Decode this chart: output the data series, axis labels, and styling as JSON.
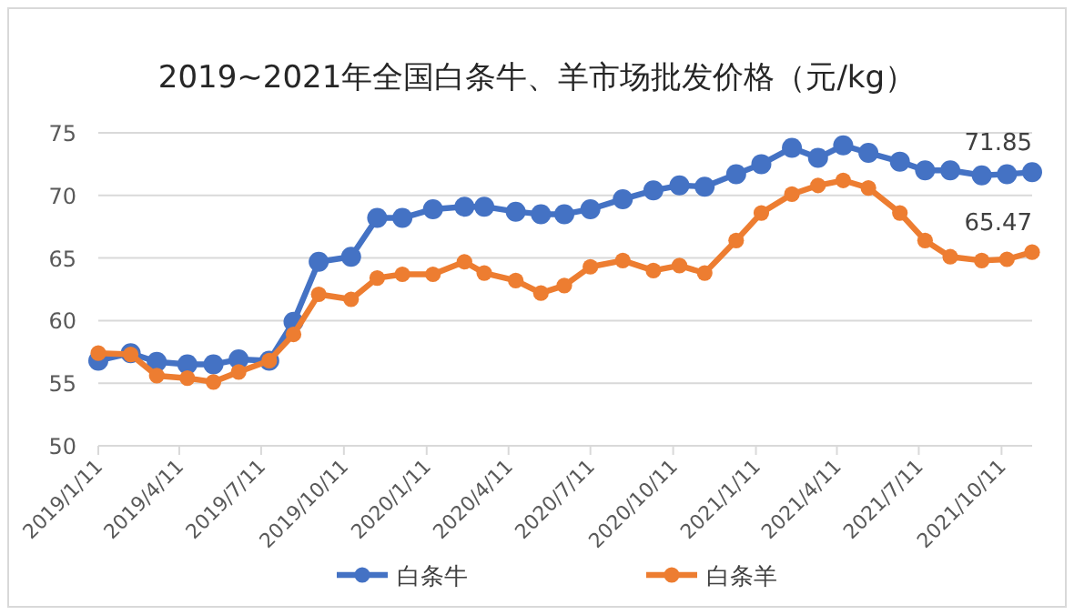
{
  "chart_data": {
    "type": "line",
    "title": "2019~2021年全国白条牛、羊市场批发价格（元/kg）",
    "x": [
      "2019-01-11",
      "2019-02-16",
      "2019-03-17",
      "2019-04-20",
      "2019-05-19",
      "2019-06-16",
      "2019-07-20",
      "2019-08-16",
      "2019-09-13",
      "2019-10-19",
      "2019-11-17",
      "2019-12-15",
      "2020-01-18",
      "2020-02-22",
      "2020-03-15",
      "2020-04-19",
      "2020-05-17",
      "2020-06-12",
      "2020-07-11",
      "2020-08-16",
      "2020-09-19",
      "2020-10-18",
      "2020-11-15",
      "2020-12-20",
      "2021-01-17",
      "2021-02-20",
      "2021-03-21",
      "2021-04-18",
      "2021-05-16",
      "2021-06-20",
      "2021-07-18",
      "2021-08-15",
      "2021-09-19",
      "2021-10-17",
      "2021-11-14"
    ],
    "series": [
      {
        "name": "白条牛",
        "color": "#4472c4",
        "values": [
          56.8,
          57.4,
          56.7,
          56.5,
          56.5,
          56.9,
          56.8,
          59.9,
          64.7,
          65.1,
          68.2,
          68.2,
          68.9,
          69.1,
          69.1,
          68.7,
          68.5,
          68.5,
          68.9,
          69.7,
          70.4,
          70.8,
          70.7,
          71.7,
          72.5,
          73.8,
          73.0,
          74.0,
          73.4,
          72.7,
          72.0,
          72.0,
          71.6,
          71.7,
          71.85
        ],
        "value_labels": [
          null,
          null,
          null,
          null,
          null,
          null,
          null,
          null,
          null,
          null,
          null,
          null,
          null,
          null,
          null,
          null,
          null,
          null,
          null,
          null,
          null,
          null,
          null,
          null,
          null,
          null,
          null,
          null,
          null,
          null,
          null,
          null,
          null,
          null,
          "71.85"
        ]
      },
      {
        "name": "白条羊",
        "color": "#ed7d31",
        "values": [
          57.4,
          57.3,
          55.6,
          55.4,
          55.1,
          55.9,
          56.8,
          58.9,
          62.1,
          61.7,
          63.4,
          63.7,
          63.7,
          64.7,
          63.8,
          63.2,
          62.2,
          62.8,
          64.3,
          64.8,
          64.0,
          64.4,
          63.8,
          66.4,
          68.6,
          70.1,
          70.8,
          71.2,
          70.6,
          68.6,
          66.4,
          65.1,
          64.8,
          64.9,
          65.47
        ],
        "value_labels": [
          null,
          null,
          null,
          null,
          null,
          null,
          null,
          null,
          null,
          null,
          null,
          null,
          null,
          null,
          null,
          null,
          null,
          null,
          null,
          null,
          null,
          null,
          null,
          null,
          null,
          null,
          null,
          null,
          null,
          null,
          null,
          null,
          null,
          null,
          "65.47"
        ]
      }
    ],
    "xlim": [
      "2019-01-11",
      "2021-11-14"
    ],
    "ylim": [
      50,
      75
    ],
    "yticks": [
      50,
      55,
      60,
      65,
      70,
      75
    ],
    "xticks": [
      {
        "value": "2019-01-11",
        "label": "2019/1/11"
      },
      {
        "value": "2019-04-11",
        "label": "2019/4/11"
      },
      {
        "value": "2019-07-11",
        "label": "2019/7/11"
      },
      {
        "value": "2019-10-11",
        "label": "2019/10/11"
      },
      {
        "value": "2020-01-11",
        "label": "2020/1/11"
      },
      {
        "value": "2020-04-11",
        "label": "2020/4/11"
      },
      {
        "value": "2020-07-11",
        "label": "2020/7/11"
      },
      {
        "value": "2020-10-11",
        "label": "2020/10/11"
      },
      {
        "value": "2021-01-11",
        "label": "2021/1/11"
      },
      {
        "value": "2021-04-11",
        "label": "2021/4/11"
      },
      {
        "value": "2021-07-11",
        "label": "2021/7/11"
      },
      {
        "value": "2021-10-11",
        "label": "2021/10/11"
      }
    ],
    "grid": "y",
    "legend": "bottom",
    "marker": "circle",
    "line_style": "solid"
  }
}
